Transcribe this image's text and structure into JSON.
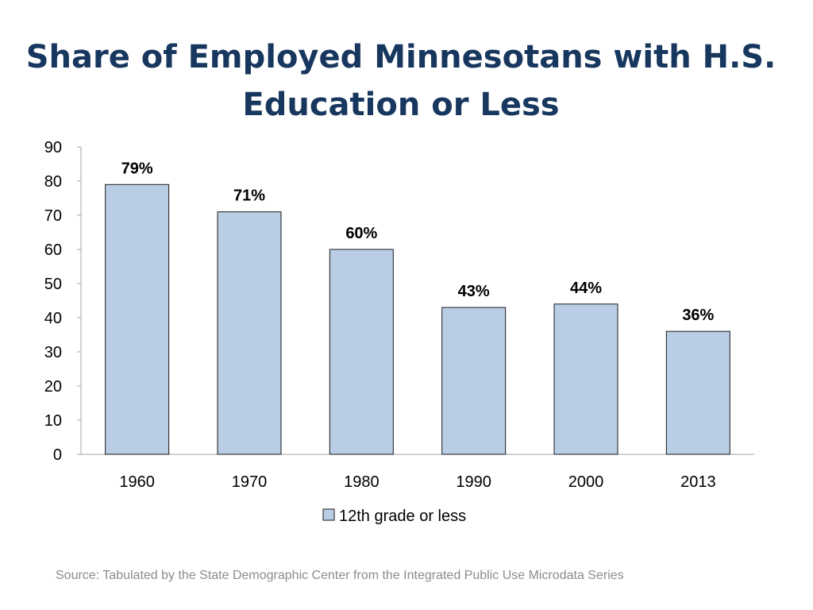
{
  "title": "Share of Employed Minnesotans with H.S. Education or Less",
  "source": "Source: Tabulated by the State Demographic Center from the Integrated Public Use Microdata Series",
  "colors": {
    "bar_fill": "#b9cde5",
    "bar_stroke": "#1a1a1a",
    "title": "#17375e",
    "axis": "#a6a6a6",
    "text": "#000000",
    "source": "#8c8c8c"
  },
  "chart_data": {
    "type": "bar",
    "title": "Share of Employed Minnesotans with H.S. Education or Less",
    "categories": [
      "1960",
      "1970",
      "1980",
      "1990",
      "2000",
      "2013"
    ],
    "series": [
      {
        "name": "12th grade or less",
        "values": [
          79,
          71,
          60,
          43,
          44,
          36
        ],
        "data_labels": [
          "79%",
          "71%",
          "60%",
          "43%",
          "44%",
          "36%"
        ]
      }
    ],
    "ylim": [
      0,
      90
    ],
    "yticks": [
      0,
      10,
      20,
      30,
      40,
      50,
      60,
      70,
      80,
      90
    ],
    "xlabel": "",
    "ylabel": "",
    "grid": false,
    "legend": "bottom"
  }
}
